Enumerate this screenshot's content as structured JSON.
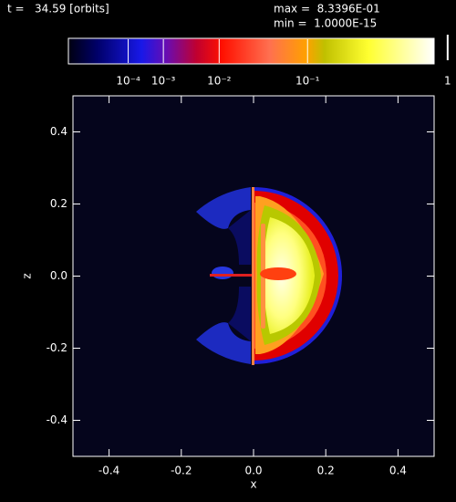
{
  "chart_data": {
    "type": "image",
    "time_label": "t =   34.59 [orbits]",
    "max": {
      "value": 0.83396,
      "label": "max =  8.3396E-01"
    },
    "min": {
      "value": 1e-15,
      "label": "min =  1.0000E-15"
    },
    "colorbar_power": 0.2,
    "colorbar_ticks": [
      {
        "value": 0.0001,
        "label": "10⁻⁴"
      },
      {
        "value": 0.001,
        "label": "10⁻³"
      },
      {
        "value": 0.01,
        "label": "10⁻²"
      },
      {
        "value": 0.1,
        "label": "10⁻¹"
      },
      1
    ],
    "x_label": "x",
    "y_label": "z",
    "xlim": [
      -0.5,
      0.5
    ],
    "ylim": [
      -0.5,
      0.5
    ],
    "xticks": [
      -0.4,
      -0.2,
      {
        "value": 0,
        "label": "0.0"
      },
      0.2,
      0.4
    ],
    "yticks": [
      -0.4,
      -0.2,
      {
        "value": 0,
        "label": "0.0"
      },
      0.2,
      0.4
    ]
  }
}
